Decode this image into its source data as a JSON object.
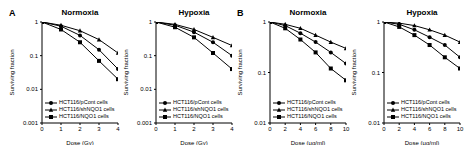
{
  "chart_data": [
    {
      "type": "line",
      "annotation": "A",
      "title": "Normoxia",
      "x_label": "Dose (Gy)",
      "y_label": "Surviving fraction",
      "log": "y",
      "x": [
        0,
        1,
        2,
        3,
        4
      ],
      "xlim": [
        0,
        4
      ],
      "xticks": [
        0,
        1,
        2,
        3,
        4
      ],
      "ylim": [
        0.001,
        1
      ],
      "yticks": [
        0.001,
        0.01,
        0.1,
        1
      ],
      "series": [
        {
          "name": "HCT116/pCont cells",
          "color": "#000000",
          "marker": "circle",
          "values": [
            1,
            0.75,
            0.4,
            0.15,
            0.04
          ]
        },
        {
          "name": "HCT116/shNQO1 cells",
          "color": "#000000",
          "marker": "triangle",
          "values": [
            1,
            0.8,
            0.55,
            0.3,
            0.12
          ]
        },
        {
          "name": "HCT116/NQO1 cells",
          "color": "#000000",
          "marker": "square",
          "values": [
            1,
            0.6,
            0.25,
            0.07,
            0.02
          ]
        }
      ]
    },
    {
      "type": "line",
      "title": "Hypoxia",
      "x_label": "Dose (Gy)",
      "y_label": "Surviving fraction",
      "log": "y",
      "x": [
        0,
        1,
        2,
        3,
        4
      ],
      "xlim": [
        0,
        4
      ],
      "xticks": [
        0,
        1,
        2,
        3,
        4
      ],
      "ylim": [
        0.001,
        1
      ],
      "yticks": [
        0.001,
        0.01,
        0.1,
        1
      ],
      "series": [
        {
          "name": "HCT116/pCont cells",
          "color": "#000000",
          "marker": "circle",
          "values": [
            1,
            0.8,
            0.5,
            0.25,
            0.1
          ]
        },
        {
          "name": "HCT116/shNQO1 cells",
          "color": "#000000",
          "marker": "triangle",
          "values": [
            1,
            0.85,
            0.6,
            0.35,
            0.2
          ]
        },
        {
          "name": "HCT116/NQO1 cells",
          "color": "#000000",
          "marker": "square",
          "values": [
            1,
            0.7,
            0.35,
            0.12,
            0.04
          ]
        }
      ]
    },
    {
      "type": "line",
      "annotation": "B",
      "title": "Normoxia",
      "x_label": "Dose (μg/ml)",
      "y_label": "Surviving fraction",
      "log": "y",
      "x": [
        0,
        2,
        4,
        6,
        8,
        10
      ],
      "xlim": [
        0,
        10
      ],
      "xticks": [
        0,
        2,
        4,
        6,
        8,
        10
      ],
      "ylim": [
        0.01,
        1
      ],
      "yticks": [
        0.01,
        0.1,
        1
      ],
      "series": [
        {
          "name": "HCT116/pCont cells",
          "color": "#000000",
          "marker": "circle",
          "values": [
            1,
            0.85,
            0.6,
            0.4,
            0.25,
            0.15
          ]
        },
        {
          "name": "HCT116/shNQO1 cells",
          "color": "#000000",
          "marker": "triangle",
          "values": [
            1,
            0.9,
            0.75,
            0.55,
            0.4,
            0.3
          ]
        },
        {
          "name": "HCT116/NQO1 cells",
          "color": "#000000",
          "marker": "square",
          "values": [
            1,
            0.75,
            0.45,
            0.25,
            0.12,
            0.07
          ]
        }
      ]
    },
    {
      "type": "line",
      "title": "Hypoxia",
      "x_label": "Dose (μg/ml)",
      "y_label": "Surviving fraction",
      "log": "y",
      "x": [
        0,
        2,
        4,
        6,
        8,
        10
      ],
      "xlim": [
        0,
        10
      ],
      "xticks": [
        0,
        2,
        4,
        6,
        8,
        10
      ],
      "ylim": [
        0.01,
        1
      ],
      "yticks": [
        0.01,
        0.1,
        1
      ],
      "series": [
        {
          "name": "HCT116/pCont cells",
          "color": "#000000",
          "marker": "circle",
          "values": [
            1,
            0.9,
            0.7,
            0.5,
            0.35,
            0.2
          ]
        },
        {
          "name": "HCT116/shNQO1 cells",
          "color": "#000000",
          "marker": "triangle",
          "values": [
            1,
            0.95,
            0.85,
            0.7,
            0.55,
            0.4
          ]
        },
        {
          "name": "HCT116/NQO1 cells",
          "color": "#000000",
          "marker": "square",
          "values": [
            1,
            0.8,
            0.55,
            0.35,
            0.2,
            0.12
          ]
        }
      ]
    }
  ]
}
